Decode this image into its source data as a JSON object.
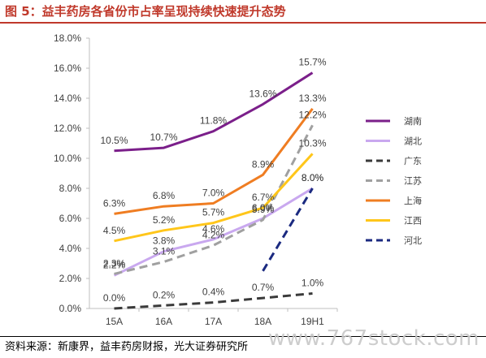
{
  "figure": {
    "title": "图 5：益丰药房各省份市占率呈现持续快速提升态势",
    "source": "资料来源：新康界，益丰药房财报，光大证券研究所",
    "watermark": "www.767stock.com"
  },
  "colors": {
    "title": "#c0392b",
    "湖南": "#7b1f8a",
    "湖北": "#c9a8ef",
    "广东": "#3a3a3a",
    "江苏": "#a0a0a0",
    "上海": "#ef7d22",
    "江西": "#ffc61a",
    "河北": "#1b2a80"
  },
  "chart_data": {
    "type": "line",
    "categories": [
      "15A",
      "16A",
      "17A",
      "18A",
      "19H1"
    ],
    "ylim": [
      0,
      18
    ],
    "yticks": [
      "0.0%",
      "2.0%",
      "4.0%",
      "6.0%",
      "8.0%",
      "10.0%",
      "12.0%",
      "14.0%",
      "16.0%",
      "18.0%"
    ],
    "grid": false,
    "legend_position": "right",
    "series": [
      {
        "name": "湖南",
        "style": "solid",
        "values": [
          10.5,
          10.7,
          11.8,
          13.6,
          15.7
        ],
        "labels": [
          "10.5%",
          "10.7%",
          "11.8%",
          "13.6%",
          "15.7%"
        ]
      },
      {
        "name": "湖北",
        "style": "solid",
        "values": [
          2.2,
          3.8,
          4.6,
          6.0,
          8.0
        ],
        "labels": [
          "2.2%",
          "3.8%",
          "4.6%",
          "6.0%",
          "8.0%"
        ]
      },
      {
        "name": "广东",
        "style": "dashed",
        "values": [
          0.0,
          0.2,
          0.4,
          0.7,
          1.0
        ],
        "labels": [
          "0.0%",
          "0.2%",
          "0.4%",
          "0.7%",
          "1.0%"
        ]
      },
      {
        "name": "江苏",
        "style": "dashed",
        "values": [
          2.3,
          3.1,
          4.2,
          5.9,
          12.2
        ],
        "labels": [
          "2.3%",
          "3.1%",
          "4.2%",
          "5.9%",
          "12.2%"
        ]
      },
      {
        "name": "上海",
        "style": "solid",
        "values": [
          6.3,
          6.8,
          7.0,
          8.9,
          13.3
        ],
        "labels": [
          "6.3%",
          "6.8%",
          "7.0%",
          "8.9%",
          "13.3%"
        ]
      },
      {
        "name": "江西",
        "style": "solid",
        "values": [
          4.5,
          5.2,
          5.7,
          6.7,
          10.3
        ],
        "labels": [
          "4.5%",
          "5.2%",
          "5.7%",
          "6.7%",
          "10.3%"
        ]
      },
      {
        "name": "河北",
        "style": "dashed",
        "values": [
          null,
          null,
          null,
          2.5,
          8.0
        ],
        "labels": [
          null,
          null,
          null,
          null,
          "8.0%"
        ]
      }
    ]
  }
}
